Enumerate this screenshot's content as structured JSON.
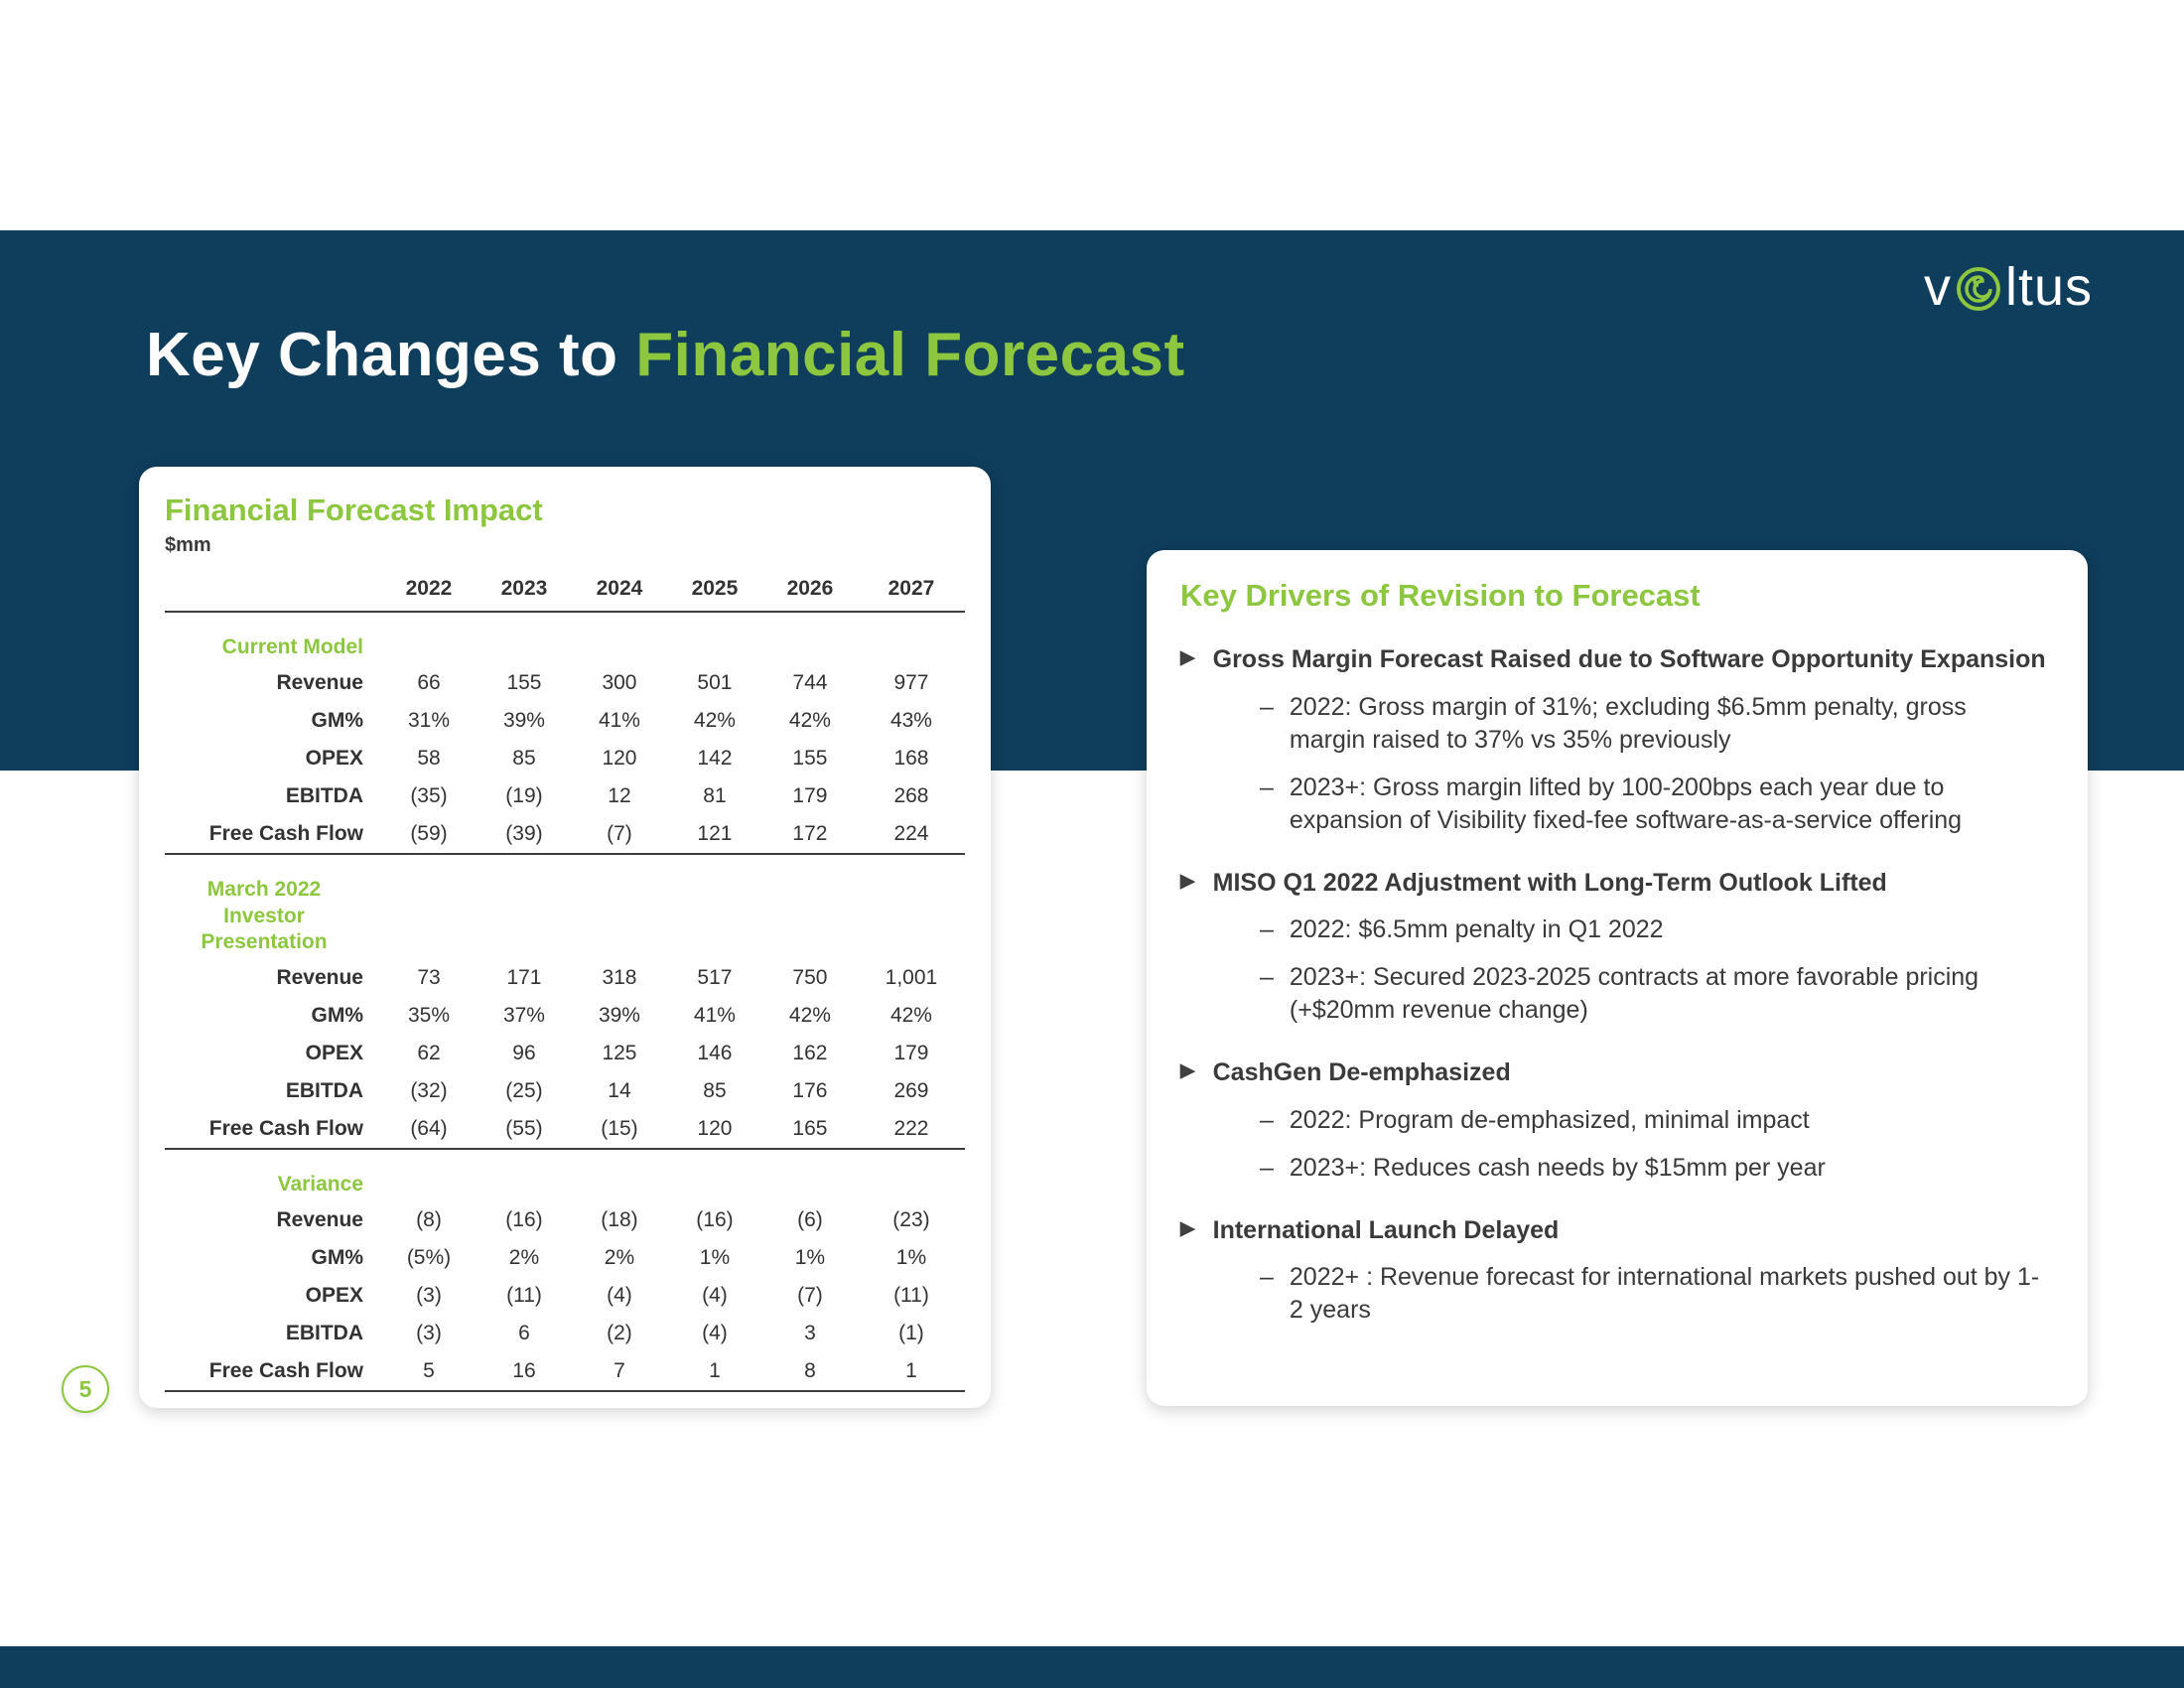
{
  "colors": {
    "navy": "#0f3d5c",
    "green": "#8dc63f",
    "text": "#3a3a3a"
  },
  "slide": {
    "title_white": "Key Changes to ",
    "title_green": "Financial Forecast",
    "page_number": "5",
    "logo_text_pre": "v",
    "logo_text_post": "ltus",
    "logo_o_icon": "vortex-eye-icon"
  },
  "table_card": {
    "heading": "Financial Forecast Impact",
    "unit": "$mm",
    "years": [
      "2022",
      "2023",
      "2024",
      "2025",
      "2026",
      "2027"
    ],
    "sections": [
      {
        "label_lines": [
          "Current Model"
        ],
        "rows": [
          {
            "name": "Revenue",
            "values": [
              "66",
              "155",
              "300",
              "501",
              "744",
              "977"
            ]
          },
          {
            "name": "GM%",
            "values": [
              "31%",
              "39%",
              "41%",
              "42%",
              "42%",
              "43%"
            ]
          },
          {
            "name": "OPEX",
            "values": [
              "58",
              "85",
              "120",
              "142",
              "155",
              "168"
            ]
          },
          {
            "name": "EBITDA",
            "values": [
              "(35)",
              "(19)",
              "12",
              "81",
              "179",
              "268"
            ]
          },
          {
            "name": "Free Cash Flow",
            "values": [
              "(59)",
              "(39)",
              "(7)",
              "121",
              "172",
              "224"
            ]
          }
        ]
      },
      {
        "label_lines": [
          "March 2022",
          "Investor Presentation"
        ],
        "rows": [
          {
            "name": "Revenue",
            "values": [
              "73",
              "171",
              "318",
              "517",
              "750",
              "1,001"
            ]
          },
          {
            "name": "GM%",
            "values": [
              "35%",
              "37%",
              "39%",
              "41%",
              "42%",
              "42%"
            ]
          },
          {
            "name": "OPEX",
            "values": [
              "62",
              "96",
              "125",
              "146",
              "162",
              "179"
            ]
          },
          {
            "name": "EBITDA",
            "values": [
              "(32)",
              "(25)",
              "14",
              "85",
              "176",
              "269"
            ]
          },
          {
            "name": "Free Cash Flow",
            "values": [
              "(64)",
              "(55)",
              "(15)",
              "120",
              "165",
              "222"
            ]
          }
        ]
      },
      {
        "label_lines": [
          "Variance"
        ],
        "rows": [
          {
            "name": "Revenue",
            "values": [
              "(8)",
              "(16)",
              "(18)",
              "(16)",
              "(6)",
              "(23)"
            ]
          },
          {
            "name": "GM%",
            "values": [
              "(5%)",
              "2%",
              "2%",
              "1%",
              "1%",
              "1%"
            ]
          },
          {
            "name": "OPEX",
            "values": [
              "(3)",
              "(11)",
              "(4)",
              "(4)",
              "(7)",
              "(11)"
            ]
          },
          {
            "name": "EBITDA",
            "values": [
              "(3)",
              "6",
              "(2)",
              "(4)",
              "3",
              "(1)"
            ]
          },
          {
            "name": "Free Cash Flow",
            "values": [
              "5",
              "16",
              "7",
              "1",
              "8",
              "1"
            ]
          }
        ]
      }
    ]
  },
  "drivers_card": {
    "heading": "Key Drivers of Revision to Forecast",
    "items": [
      {
        "title": "Gross Margin Forecast Raised due to Software Opportunity Expansion",
        "subs": [
          "2022: Gross margin of 31%; excluding $6.5mm penalty, gross margin raised to 37% vs 35% previously",
          "2023+: Gross margin lifted by 100-200bps each year due to expansion of Visibility fixed-fee software-as-a-service offering"
        ]
      },
      {
        "title": "MISO Q1 2022 Adjustment with Long-Term Outlook Lifted",
        "subs": [
          "2022: $6.5mm penalty in Q1 2022",
          "2023+: Secured 2023-2025 contracts at more favorable pricing (+$20mm revenue change)"
        ]
      },
      {
        "title": "CashGen De-emphasized",
        "subs": [
          "2022: Program de-emphasized, minimal impact",
          "2023+: Reduces cash needs by $15mm per year"
        ]
      },
      {
        "title": "International Launch Delayed",
        "subs": [
          "2022+ : Revenue forecast for international markets pushed out by 1-2 years"
        ]
      }
    ]
  }
}
